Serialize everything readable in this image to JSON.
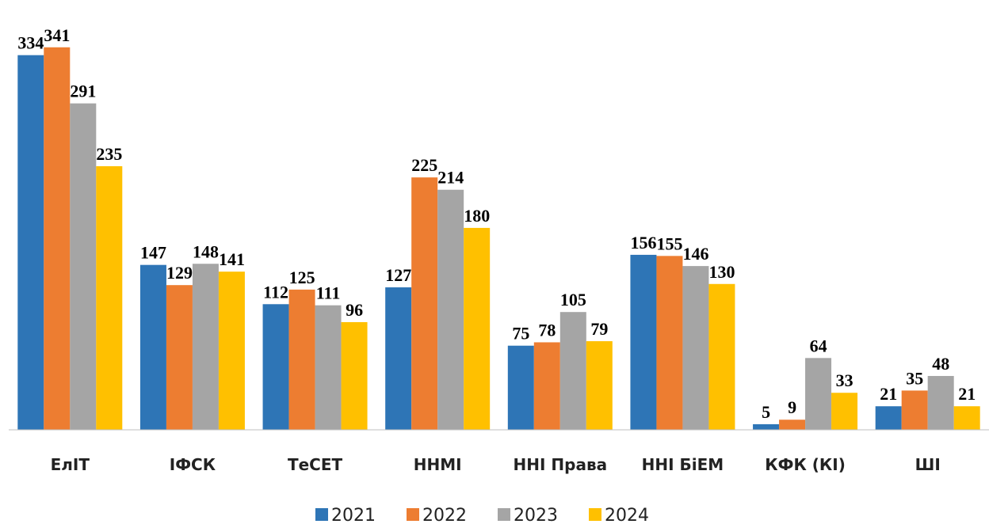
{
  "chart_data": {
    "type": "bar",
    "categories": [
      "ЕлІТ",
      "ІФСК",
      "ТеСЕТ",
      "ННМІ",
      "ННІ Права",
      "ННІ БіЕМ",
      "КФК (КІ)",
      "ШІ"
    ],
    "series": [
      {
        "name": "2021",
        "color": "#2e75b6",
        "values": [
          334,
          147,
          112,
          127,
          75,
          156,
          5,
          21
        ]
      },
      {
        "name": "2022",
        "color": "#ed7d31",
        "values": [
          341,
          129,
          125,
          225,
          78,
          155,
          9,
          35
        ]
      },
      {
        "name": "2023",
        "color": "#a5a5a5",
        "values": [
          291,
          148,
          111,
          214,
          105,
          146,
          64,
          48
        ]
      },
      {
        "name": "2024",
        "color": "#ffc000",
        "values": [
          235,
          141,
          96,
          180,
          79,
          130,
          33,
          21
        ]
      }
    ],
    "ylim": [
      0,
      350
    ],
    "legend": "bottom"
  }
}
